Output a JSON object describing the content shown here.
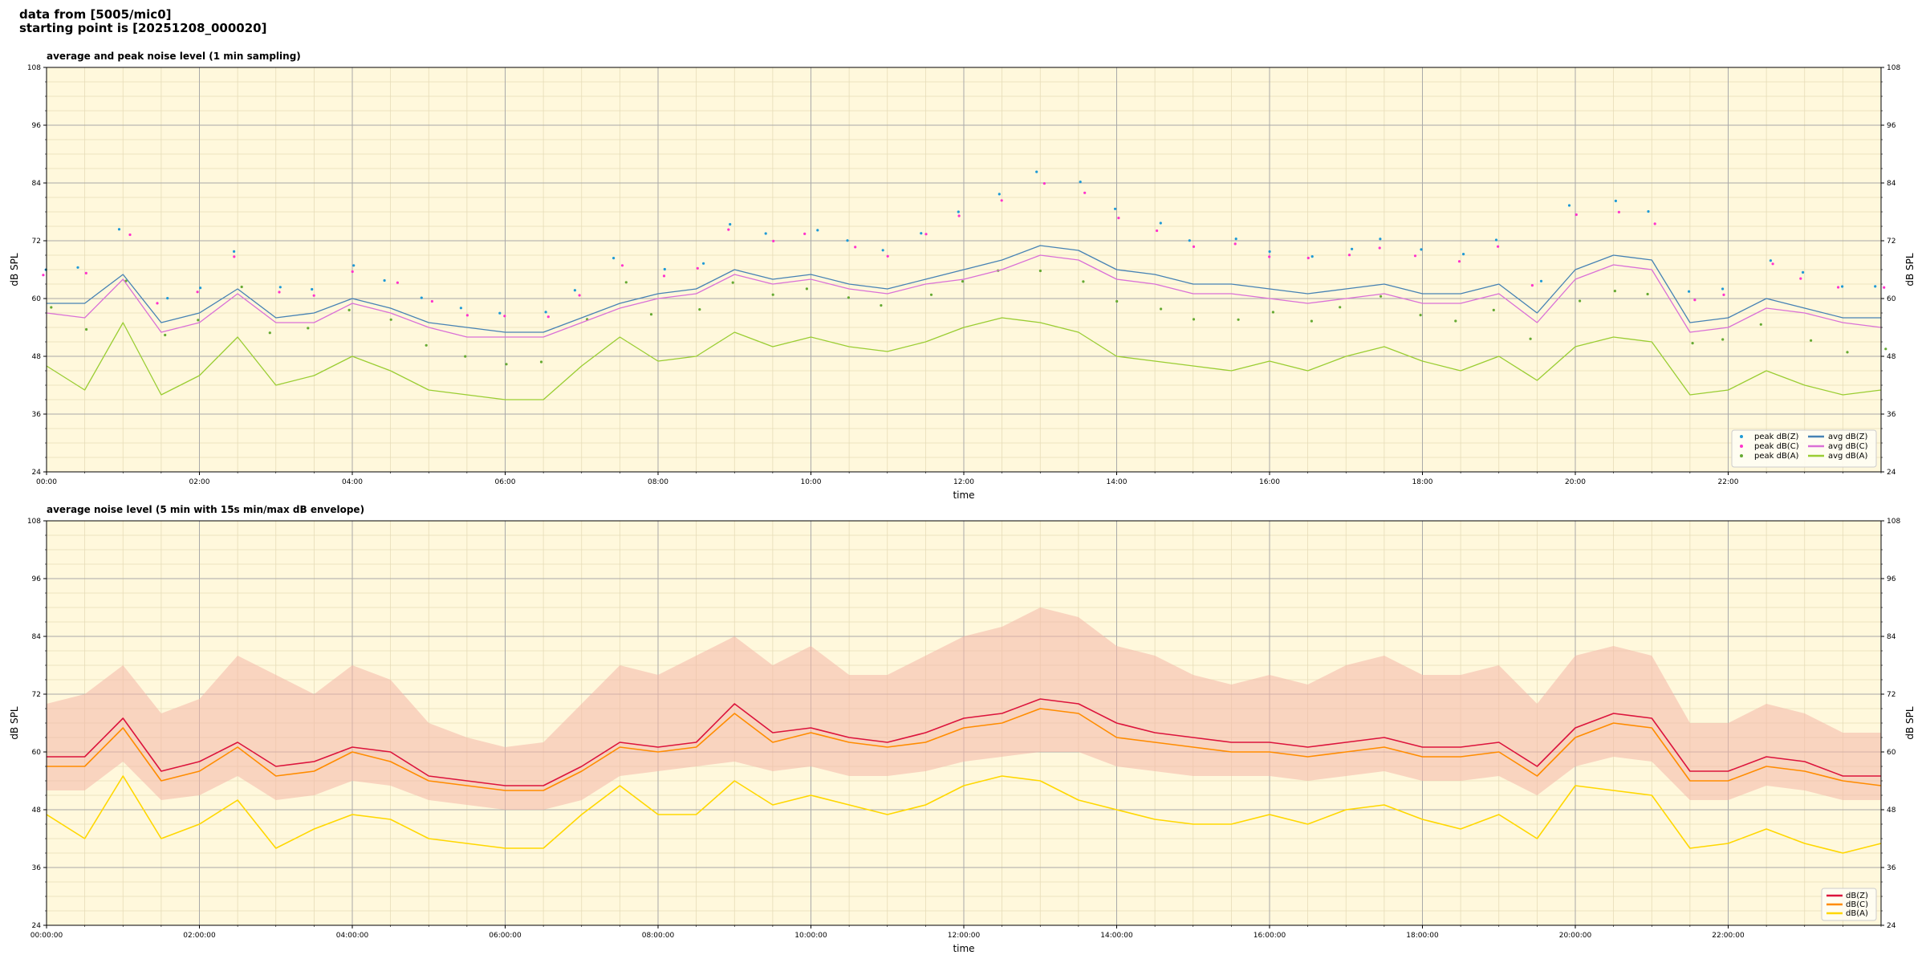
{
  "header": {
    "line1": "data from [5005/mic0]",
    "line2": "starting point is [20251208_000020]"
  },
  "colors": {
    "plot_bg": "#fff8dc",
    "grid_major": "#a9a9a9",
    "grid_minor": "#e6dcb8",
    "avg_z": "#4682b4",
    "avg_c": "#da70d6",
    "avg_a": "#9acd32",
    "peak_z": "#1f9ad6",
    "peak_c": "#ff33cc",
    "peak_a": "#66aa33",
    "env": "#f4b6a8",
    "dbz": "#dc143c",
    "dbc": "#ff8c00",
    "dba": "#ffd700"
  },
  "chart_data": [
    {
      "type": "line",
      "title": "average and peak noise level (1 min sampling)",
      "xlabel": "time",
      "ylabel": "dB SPL",
      "ylim": [
        24,
        108
      ],
      "yticks": [
        "108",
        "96",
        "84",
        "72",
        "60",
        "48",
        "36",
        "24"
      ],
      "xlim_hours": [
        0,
        24
      ],
      "xtick_labels": [
        "00:00",
        "02:00",
        "04:00",
        "06:00",
        "08:00",
        "10:00",
        "12:00",
        "14:00",
        "16:00",
        "18:00",
        "20:00",
        "22:00"
      ],
      "grid": true,
      "legend_position": "bottom-right",
      "x_hours": [
        0,
        0.5,
        1,
        1.5,
        2,
        2.5,
        3,
        3.5,
        4,
        4.5,
        5,
        5.5,
        6,
        6.5,
        7,
        7.5,
        8,
        8.5,
        9,
        9.5,
        10,
        10.5,
        11,
        11.5,
        12,
        12.5,
        13,
        13.5,
        14,
        14.5,
        15,
        15.5,
        16,
        16.5,
        17,
        17.5,
        18,
        18.5,
        19,
        19.5,
        20,
        20.5,
        21,
        21.5,
        22,
        22.5,
        23,
        23.5,
        24
      ],
      "series": [
        {
          "name": "avg dB(Z)",
          "kind": "line",
          "color_key": "avg_z",
          "values": [
            59,
            59,
            65,
            55,
            57,
            62,
            56,
            57,
            60,
            58,
            55,
            54,
            53,
            53,
            56,
            59,
            61,
            62,
            66,
            64,
            65,
            63,
            62,
            64,
            66,
            68,
            71,
            70,
            66,
            65,
            63,
            63,
            62,
            61,
            62,
            63,
            61,
            61,
            63,
            57,
            66,
            69,
            68,
            55,
            56,
            60,
            58,
            56,
            56
          ]
        },
        {
          "name": "avg dB(C)",
          "kind": "line",
          "color_key": "avg_c",
          "values": [
            57,
            56,
            64,
            53,
            55,
            61,
            55,
            55,
            59,
            57,
            54,
            52,
            52,
            52,
            55,
            58,
            60,
            61,
            65,
            63,
            64,
            62,
            61,
            63,
            64,
            66,
            69,
            68,
            64,
            63,
            61,
            61,
            60,
            59,
            60,
            61,
            59,
            59,
            61,
            55,
            64,
            67,
            66,
            53,
            54,
            58,
            57,
            55,
            54
          ]
        },
        {
          "name": "avg dB(A)",
          "kind": "line",
          "color_key": "avg_a",
          "values": [
            46,
            41,
            55,
            40,
            44,
            52,
            42,
            44,
            48,
            45,
            41,
            40,
            39,
            39,
            46,
            52,
            47,
            48,
            53,
            50,
            52,
            50,
            49,
            51,
            54,
            56,
            55,
            53,
            48,
            47,
            46,
            45,
            47,
            45,
            48,
            50,
            47,
            45,
            48,
            43,
            50,
            52,
            51,
            40,
            41,
            45,
            42,
            40,
            41
          ]
        },
        {
          "name": "peak dB(Z)",
          "kind": "scatter",
          "color_key": "peak_z",
          "values": [
            66,
            66,
            74,
            60,
            62,
            70,
            62,
            62,
            67,
            64,
            60,
            58,
            57,
            57,
            62,
            68,
            66,
            67,
            75,
            73,
            74,
            72,
            70,
            74,
            78,
            82,
            86,
            84,
            79,
            76,
            72,
            72,
            70,
            69,
            70,
            72,
            70,
            69,
            72,
            64,
            79,
            80,
            78,
            61,
            62,
            68,
            65,
            63,
            63
          ]
        },
        {
          "name": "peak dB(C)",
          "kind": "scatter",
          "color_key": "peak_c",
          "values": [
            65,
            65,
            73,
            59,
            61,
            69,
            61,
            61,
            66,
            63,
            59,
            57,
            56,
            56,
            61,
            67,
            65,
            66,
            74,
            72,
            73,
            71,
            69,
            73,
            77,
            80,
            84,
            82,
            77,
            74,
            71,
            71,
            69,
            68,
            69,
            71,
            69,
            68,
            71,
            63,
            77,
            78,
            76,
            60,
            61,
            67,
            64,
            62,
            62
          ]
        },
        {
          "name": "peak dB(A)",
          "kind": "scatter",
          "color_key": "peak_a",
          "values": [
            58,
            54,
            64,
            52,
            56,
            62,
            53,
            54,
            58,
            56,
            50,
            48,
            46,
            47,
            56,
            63,
            57,
            58,
            63,
            61,
            62,
            60,
            59,
            61,
            64,
            66,
            66,
            64,
            59,
            58,
            56,
            56,
            57,
            55,
            58,
            60,
            57,
            55,
            58,
            52,
            60,
            62,
            61,
            51,
            52,
            55,
            51,
            49,
            50
          ]
        }
      ]
    },
    {
      "type": "line",
      "title": "average noise level (5 min with 15s min/max dB envelope)",
      "xlabel": "time",
      "ylabel": "dB SPL",
      "ylim": [
        24,
        108
      ],
      "yticks": [
        "108",
        "96",
        "84",
        "72",
        "60",
        "48",
        "36",
        "24"
      ],
      "xlim_hours": [
        0,
        24
      ],
      "xtick_labels": [
        "00:00:00",
        "02:00:00",
        "04:00:00",
        "06:00:00",
        "08:00:00",
        "10:00:00",
        "12:00:00",
        "14:00:00",
        "16:00:00",
        "18:00:00",
        "20:00:00",
        "22:00:00"
      ],
      "grid": true,
      "legend_position": "bottom-right",
      "x_hours": [
        0,
        0.5,
        1,
        1.5,
        2,
        2.5,
        3,
        3.5,
        4,
        4.5,
        5,
        5.5,
        6,
        6.5,
        7,
        7.5,
        8,
        8.5,
        9,
        9.5,
        10,
        10.5,
        11,
        11.5,
        12,
        12.5,
        13,
        13.5,
        14,
        14.5,
        15,
        15.5,
        16,
        16.5,
        17,
        17.5,
        18,
        18.5,
        19,
        19.5,
        20,
        20.5,
        21,
        21.5,
        22,
        22.5,
        23,
        23.5,
        24
      ],
      "series": [
        {
          "name": "dB(Z)",
          "kind": "line",
          "color_key": "dbz",
          "values": [
            59,
            59,
            67,
            56,
            58,
            62,
            57,
            58,
            61,
            60,
            55,
            54,
            53,
            53,
            57,
            62,
            61,
            62,
            70,
            64,
            65,
            63,
            62,
            64,
            67,
            68,
            71,
            70,
            66,
            64,
            63,
            62,
            62,
            61,
            62,
            63,
            61,
            61,
            62,
            57,
            65,
            68,
            67,
            56,
            56,
            59,
            58,
            55,
            55
          ]
        },
        {
          "name": "dB(C)",
          "kind": "line",
          "color_key": "dbc",
          "values": [
            57,
            57,
            65,
            54,
            56,
            61,
            55,
            56,
            60,
            58,
            54,
            53,
            52,
            52,
            56,
            61,
            60,
            61,
            68,
            62,
            64,
            62,
            61,
            62,
            65,
            66,
            69,
            68,
            63,
            62,
            61,
            60,
            60,
            59,
            60,
            61,
            59,
            59,
            60,
            55,
            63,
            66,
            65,
            54,
            54,
            57,
            56,
            54,
            53
          ]
        },
        {
          "name": "dB(A)",
          "kind": "line",
          "color_key": "dba",
          "values": [
            47,
            42,
            55,
            42,
            45,
            50,
            40,
            44,
            47,
            46,
            42,
            41,
            40,
            40,
            47,
            53,
            47,
            47,
            54,
            49,
            51,
            49,
            47,
            49,
            53,
            55,
            54,
            50,
            48,
            46,
            45,
            45,
            47,
            45,
            48,
            49,
            46,
            44,
            47,
            42,
            53,
            52,
            51,
            40,
            41,
            44,
            41,
            39,
            41
          ]
        },
        {
          "name": "envelope max",
          "kind": "band_upper",
          "color_key": "env",
          "values": [
            70,
            72,
            78,
            68,
            71,
            80,
            76,
            72,
            78,
            75,
            66,
            63,
            61,
            62,
            70,
            78,
            76,
            80,
            84,
            78,
            82,
            76,
            76,
            80,
            84,
            86,
            90,
            88,
            82,
            80,
            76,
            74,
            76,
            74,
            78,
            80,
            76,
            76,
            78,
            70,
            80,
            82,
            80,
            66,
            66,
            70,
            68,
            64,
            64
          ]
        },
        {
          "name": "envelope min",
          "kind": "band_lower",
          "color_key": "env",
          "values": [
            52,
            52,
            58,
            50,
            51,
            55,
            50,
            51,
            54,
            53,
            50,
            49,
            48,
            48,
            50,
            55,
            56,
            57,
            58,
            56,
            57,
            55,
            55,
            56,
            58,
            59,
            60,
            60,
            57,
            56,
            55,
            55,
            55,
            54,
            55,
            56,
            54,
            54,
            55,
            51,
            57,
            59,
            58,
            50,
            50,
            53,
            52,
            50,
            50
          ]
        }
      ]
    }
  ]
}
